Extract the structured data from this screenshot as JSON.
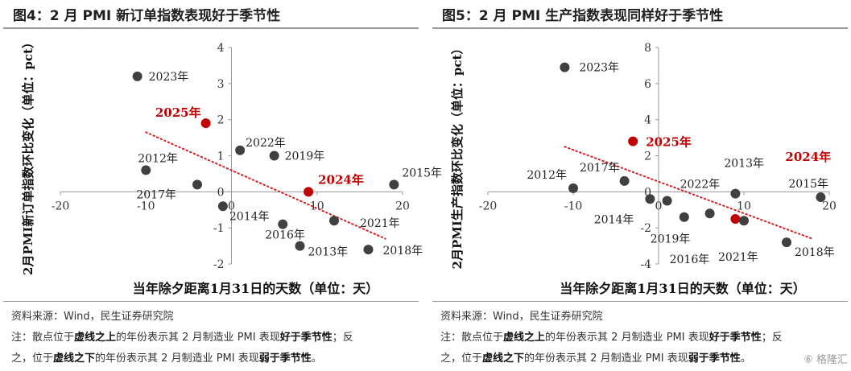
{
  "panels": [
    {
      "title": "图4：2 月 PMI 新订单指数表现好于季节性",
      "source": "资料来源：Wind，民生证券研究院",
      "note_parts": [
        {
          "t": "注：散点位于",
          "b": false
        },
        {
          "t": "虚线之上",
          "b": true
        },
        {
          "t": "的年份表示其 2 月制造业 PMI 表现",
          "b": false
        },
        {
          "t": "好于季节性",
          "b": true
        },
        {
          "t": "；反",
          "b": false
        }
      ],
      "note_parts2": [
        {
          "t": "之，位于",
          "b": false
        },
        {
          "t": "虚线之下",
          "b": true
        },
        {
          "t": "的年份表示其 2 月制造业 PMI 表现",
          "b": false
        },
        {
          "t": "弱于季节性",
          "b": true
        },
        {
          "t": "。",
          "b": false
        }
      ]
    },
    {
      "title": "图5：2 月 PMI 生产指数表现同样好于季节性",
      "source": "资料来源：Wind，民生证券研究院",
      "note_parts": [
        {
          "t": "注：散点位于",
          "b": false
        },
        {
          "t": "虚线之上",
          "b": true
        },
        {
          "t": "的年份表示其 2 月制造业 PMI 表现",
          "b": false
        },
        {
          "t": "好于季节性",
          "b": true
        },
        {
          "t": "；反",
          "b": false
        }
      ],
      "note_parts2": [
        {
          "t": "之，位于",
          "b": false
        },
        {
          "t": "虚线之下",
          "b": true
        },
        {
          "t": "的年份表示其 2 月制造业 PMI 表现",
          "b": false
        },
        {
          "t": "弱于季节性",
          "b": true
        },
        {
          "t": "。",
          "b": false
        }
      ]
    }
  ],
  "watermark": "格隆汇",
  "colors": {
    "point": "#404040",
    "highlight": "#c00000",
    "trend": "#d42020",
    "axis": "#999999"
  },
  "chart_data": [
    {
      "type": "scatter",
      "xlabel": "当年除夕距离1月31日的天数（单位：天）",
      "ylabel": "2月PMI新订单指数环比变化（单位：pct）",
      "xlim": [
        -20,
        20
      ],
      "ylim": [
        -2,
        4
      ],
      "xticks": [
        -20,
        -10,
        0,
        10,
        20
      ],
      "yticks": [
        -2,
        -1,
        0,
        1,
        2,
        3,
        4
      ],
      "trendline": {
        "style": "dotted",
        "from": [
          -10,
          1.65
        ],
        "to": [
          18,
          -1.3
        ]
      },
      "points": [
        {
          "year": "2023年",
          "x": -11,
          "y": 3.2,
          "highlight": false
        },
        {
          "year": "2025年",
          "x": -3,
          "y": 1.9,
          "highlight": true
        },
        {
          "year": "2022年",
          "x": 1,
          "y": 1.15,
          "highlight": false
        },
        {
          "year": "2019年",
          "x": 5,
          "y": 1.0,
          "highlight": false
        },
        {
          "year": "2012年",
          "x": -10,
          "y": 0.6,
          "highlight": false
        },
        {
          "year": "2017年",
          "x": -4,
          "y": 0.2,
          "highlight": false
        },
        {
          "year": "2024年",
          "x": 9,
          "y": 0.0,
          "highlight": true
        },
        {
          "year": "2015年",
          "x": 19,
          "y": 0.2,
          "highlight": false
        },
        {
          "year": "2014年",
          "x": -1,
          "y": -0.4,
          "highlight": false
        },
        {
          "year": "2016年",
          "x": 6,
          "y": -0.9,
          "highlight": false
        },
        {
          "year": "2021年",
          "x": 12,
          "y": -0.8,
          "highlight": false
        },
        {
          "year": "2013年",
          "x": 8,
          "y": -1.5,
          "highlight": false
        },
        {
          "year": "2018年",
          "x": 16,
          "y": -1.6,
          "highlight": false
        }
      ]
    },
    {
      "type": "scatter",
      "xlabel": "当年除夕距离1月31日的天数（单位：天）",
      "ylabel": "2月PMI生产指数环比变化（单位：pct）",
      "xlim": [
        -20,
        20
      ],
      "ylim": [
        -4,
        8
      ],
      "xticks": [
        -20,
        -10,
        0,
        10,
        20
      ],
      "yticks": [
        -4,
        -2,
        0,
        2,
        4,
        6,
        8
      ],
      "trendline": {
        "style": "dotted",
        "from": [
          -11,
          2.5
        ],
        "to": [
          18,
          -2.6
        ]
      },
      "points": [
        {
          "year": "2023年",
          "x": -11,
          "y": 6.9,
          "highlight": false
        },
        {
          "year": "2025年",
          "x": -3,
          "y": 2.8,
          "highlight": true
        },
        {
          "year": "2017年",
          "x": -4,
          "y": 0.6,
          "highlight": false
        },
        {
          "year": "2012年",
          "x": -10,
          "y": 0.2,
          "highlight": false
        },
        {
          "year": "2022年",
          "x": 1,
          "y": -0.5,
          "highlight": false
        },
        {
          "year": "2014年",
          "x": -1,
          "y": -0.4,
          "highlight": false
        },
        {
          "year": "2013年",
          "x": 9,
          "y": -0.1,
          "highlight": false
        },
        {
          "year": "2024年",
          "x": 9,
          "y": -1.5,
          "highlight": true
        },
        {
          "year": "2015年",
          "x": 19,
          "y": -0.3,
          "highlight": false
        },
        {
          "year": "2019年",
          "x": 3,
          "y": -1.4,
          "highlight": false
        },
        {
          "year": "2016年",
          "x": 6,
          "y": -1.2,
          "highlight": false
        },
        {
          "year": "2021年",
          "x": 10,
          "y": -1.6,
          "highlight": false
        },
        {
          "year": "2018年",
          "x": 15,
          "y": -2.8,
          "highlight": false
        }
      ]
    }
  ]
}
